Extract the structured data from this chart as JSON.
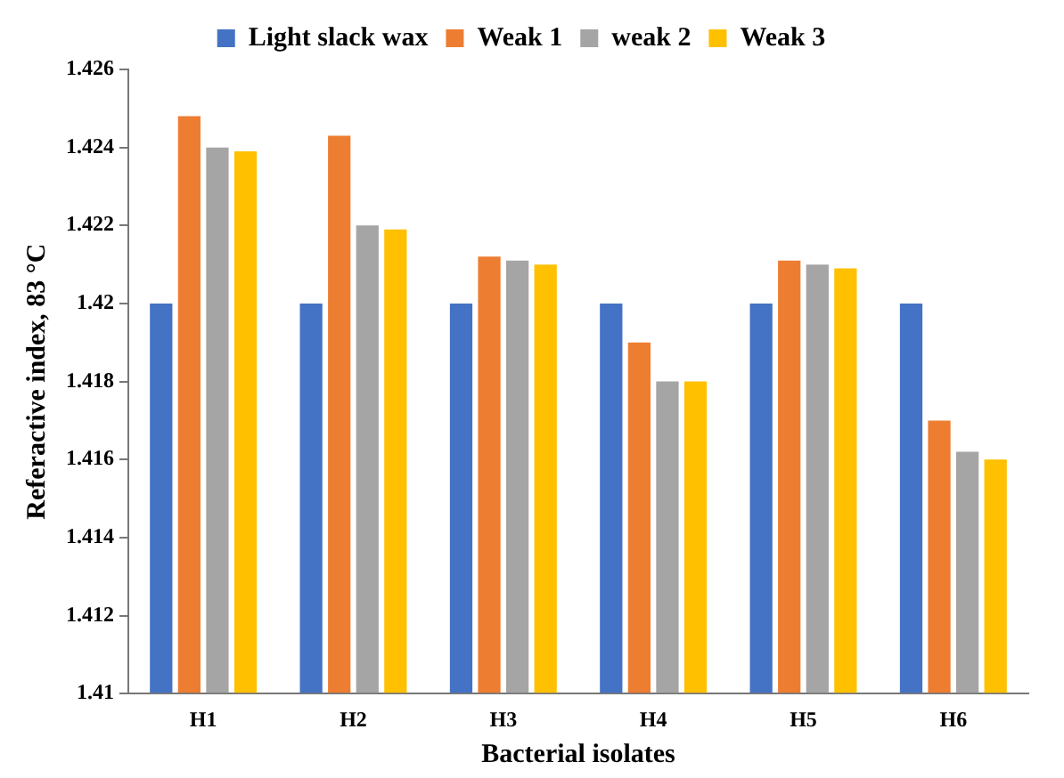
{
  "chart_data": {
    "type": "bar",
    "xlabel": "Bacterial isolates",
    "ylabel": "Referactive index, 83 °C",
    "categories": [
      "H1",
      "H2",
      "H3",
      "H4",
      "H5",
      "H6"
    ],
    "series": [
      {
        "name": "Light slack wax",
        "color": "#4472c4",
        "values": [
          1.42,
          1.42,
          1.42,
          1.42,
          1.42,
          1.42
        ]
      },
      {
        "name": "Weak 1",
        "color": "#ed7d31",
        "values": [
          1.4248,
          1.4243,
          1.4212,
          1.419,
          1.4211,
          1.417
        ]
      },
      {
        "name": "weak 2",
        "color": "#a5a5a5",
        "values": [
          1.424,
          1.422,
          1.4211,
          1.418,
          1.421,
          1.4162
        ]
      },
      {
        "name": "Weak 3",
        "color": "#ffc000",
        "values": [
          1.4239,
          1.4219,
          1.421,
          1.418,
          1.4209,
          1.416
        ]
      }
    ],
    "ylim": [
      1.41,
      1.426
    ],
    "yticks": [
      1.41,
      1.412,
      1.414,
      1.416,
      1.418,
      1.42,
      1.422,
      1.424,
      1.426
    ],
    "grid": false,
    "legend": "top"
  }
}
